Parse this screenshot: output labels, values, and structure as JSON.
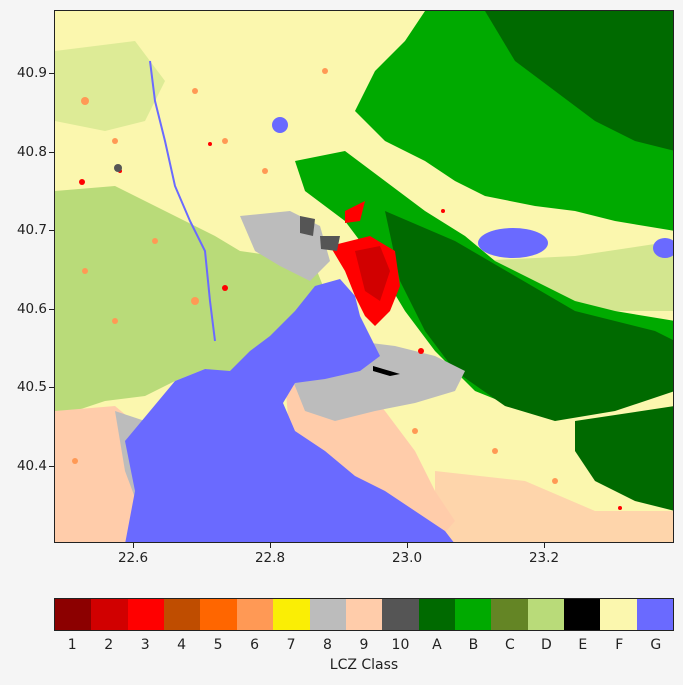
{
  "map": {
    "y_ticks": [
      "40.9",
      "40.8",
      "40.7",
      "40.6",
      "40.5",
      "40.4"
    ],
    "x_ticks": [
      "22.6",
      "22.8",
      "23.0",
      "23.2"
    ]
  },
  "legend": {
    "title": "LCZ Class",
    "classes": [
      {
        "label": "1",
        "color": "#8c0000"
      },
      {
        "label": "2",
        "color": "#d10000"
      },
      {
        "label": "3",
        "color": "#ff0000"
      },
      {
        "label": "4",
        "color": "#bf4d00"
      },
      {
        "label": "5",
        "color": "#ff6600"
      },
      {
        "label": "6",
        "color": "#ff9955"
      },
      {
        "label": "7",
        "color": "#faee05"
      },
      {
        "label": "8",
        "color": "#bcbcbc"
      },
      {
        "label": "9",
        "color": "#ffccaa"
      },
      {
        "label": "10",
        "color": "#555555"
      },
      {
        "label": "A",
        "color": "#006a00"
      },
      {
        "label": "B",
        "color": "#00aa00"
      },
      {
        "label": "C",
        "color": "#648525"
      },
      {
        "label": "D",
        "color": "#b9db79"
      },
      {
        "label": "E",
        "color": "#000000"
      },
      {
        "label": "F",
        "color": "#fbf7ae"
      },
      {
        "label": "G",
        "color": "#6a6aff"
      }
    ]
  }
}
